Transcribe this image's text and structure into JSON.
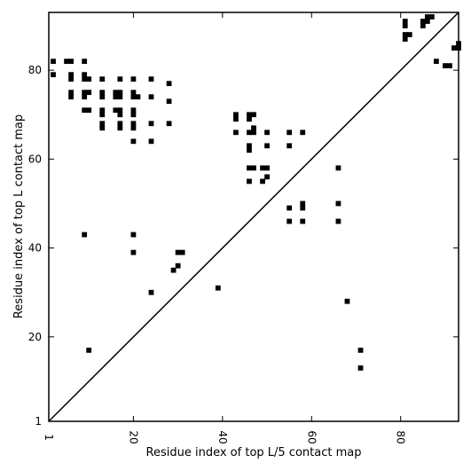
{
  "chart_data": {
    "type": "scatter",
    "xlabel": "Residue index of top L/5 contact map",
    "ylabel": "Residue index of top L contact map",
    "xlim": [
      1,
      93
    ],
    "ylim": [
      1,
      93
    ],
    "xticks": [
      1,
      20,
      40,
      60,
      80
    ],
    "yticks": [
      1,
      20,
      40,
      60,
      80
    ],
    "diagonal": true,
    "marker": "square",
    "color": "#000000",
    "points": [
      [
        2,
        82
      ],
      [
        2,
        79
      ],
      [
        5,
        82
      ],
      [
        6,
        82
      ],
      [
        6,
        79
      ],
      [
        6,
        78
      ],
      [
        6,
        75
      ],
      [
        6,
        74
      ],
      [
        9,
        82
      ],
      [
        9,
        79
      ],
      [
        9,
        78
      ],
      [
        10,
        78
      ],
      [
        9,
        75
      ],
      [
        10,
        75
      ],
      [
        9,
        74
      ],
      [
        9,
        71
      ],
      [
        10,
        71
      ],
      [
        13,
        78
      ],
      [
        13,
        75
      ],
      [
        13,
        74
      ],
      [
        13,
        71
      ],
      [
        13,
        70
      ],
      [
        13,
        68
      ],
      [
        13,
        67
      ],
      [
        16,
        75
      ],
      [
        17,
        75
      ],
      [
        16,
        74
      ],
      [
        17,
        74
      ],
      [
        16,
        71
      ],
      [
        17,
        71
      ],
      [
        17,
        70
      ],
      [
        17,
        78
      ],
      [
        17,
        68
      ],
      [
        17,
        67
      ],
      [
        20,
        78
      ],
      [
        20,
        75
      ],
      [
        20,
        74
      ],
      [
        21,
        74
      ],
      [
        20,
        71
      ],
      [
        20,
        70
      ],
      [
        20,
        68
      ],
      [
        20,
        67
      ],
      [
        20,
        64
      ],
      [
        24,
        78
      ],
      [
        24,
        74
      ],
      [
        24,
        68
      ],
      [
        24,
        64
      ],
      [
        28,
        77
      ],
      [
        28,
        73
      ],
      [
        28,
        68
      ],
      [
        43,
        70
      ],
      [
        43,
        69
      ],
      [
        43,
        66
      ],
      [
        46,
        70
      ],
      [
        47,
        70
      ],
      [
        46,
        69
      ],
      [
        46,
        66
      ],
      [
        47,
        67
      ],
      [
        47,
        66
      ],
      [
        46,
        63
      ],
      [
        46,
        62
      ],
      [
        50,
        66
      ],
      [
        50,
        63
      ],
      [
        46,
        58
      ],
      [
        47,
        58
      ],
      [
        49,
        58
      ],
      [
        50,
        58
      ],
      [
        46,
        55
      ],
      [
        50,
        56
      ],
      [
        49,
        55
      ],
      [
        55,
        66
      ],
      [
        55,
        63
      ],
      [
        58,
        66
      ],
      [
        55,
        49
      ],
      [
        55,
        46
      ],
      [
        58,
        50
      ],
      [
        58,
        49
      ],
      [
        58,
        46
      ],
      [
        66,
        58
      ],
      [
        66,
        50
      ],
      [
        66,
        46
      ],
      [
        68,
        28
      ],
      [
        71,
        17
      ],
      [
        71,
        13
      ],
      [
        9,
        43
      ],
      [
        10,
        17
      ],
      [
        20,
        43
      ],
      [
        20,
        39
      ],
      [
        24,
        30
      ],
      [
        29,
        35
      ],
      [
        30,
        39
      ],
      [
        31,
        39
      ],
      [
        30,
        36
      ],
      [
        39,
        31
      ],
      [
        81,
        91
      ],
      [
        81,
        90
      ],
      [
        81,
        88
      ],
      [
        82,
        88
      ],
      [
        81,
        87
      ],
      [
        85,
        91
      ],
      [
        85,
        90
      ],
      [
        86,
        92
      ],
      [
        86,
        91
      ],
      [
        87,
        92
      ],
      [
        88,
        82
      ],
      [
        90,
        81
      ],
      [
        91,
        81
      ],
      [
        92,
        85
      ],
      [
        93,
        85
      ],
      [
        93,
        86
      ]
    ]
  }
}
